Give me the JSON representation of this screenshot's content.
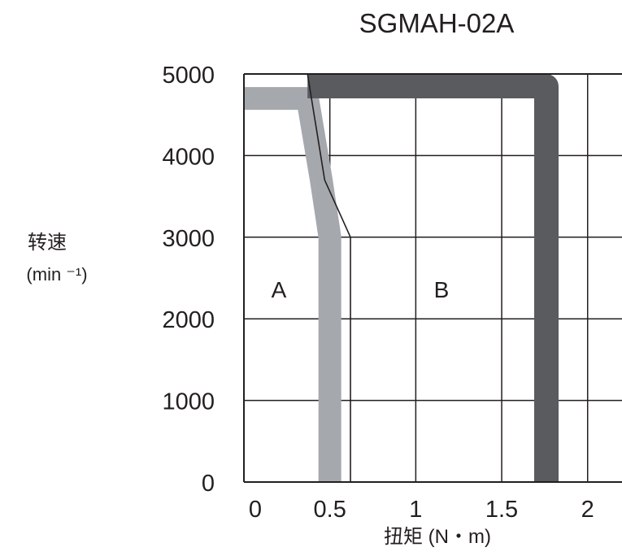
{
  "chart_data": {
    "type": "area",
    "title": "SGMAH-02A",
    "xlabel": "扭矩 (N・m)",
    "ylabel": "转速",
    "ylabel_unit": "(min ⁻¹)",
    "xlim": [
      0,
      2.2
    ],
    "ylim": [
      0,
      5000
    ],
    "xticks": [
      0,
      0.5,
      1,
      1.5,
      2
    ],
    "xtick_labels": [
      "0",
      "0.5",
      "1",
      "1.5",
      "2"
    ],
    "yticks": [
      0,
      1000,
      2000,
      3000,
      4000,
      5000
    ],
    "ytick_labels": [
      "0",
      "1000",
      "2000",
      "3000",
      "4000",
      "5000"
    ],
    "grid": true,
    "regions": [
      {
        "label": "A"
      },
      {
        "label": "B"
      }
    ],
    "series": [
      {
        "color": "#a5a8ad",
        "x": [
          0,
          0.37,
          0.45,
          0.5,
          0.5
        ],
        "y": [
          4700,
          4700,
          3700,
          3000,
          0
        ]
      },
      {
        "color": "#595b5e",
        "x": [
          0.37,
          1.76,
          1.76
        ],
        "y": [
          4850,
          4850,
          0
        ]
      }
    ],
    "boundary": {
      "color": "#231f20",
      "x": [
        0.37,
        0.47,
        0.62,
        0.62
      ],
      "y": [
        5000,
        3700,
        3000,
        0
      ]
    }
  }
}
